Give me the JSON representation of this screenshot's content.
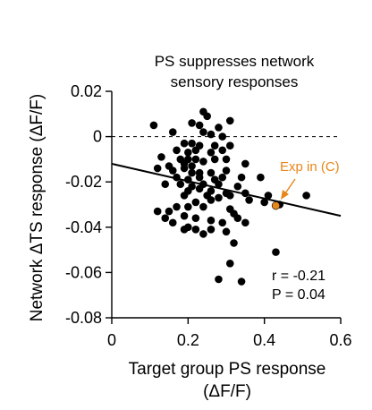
{
  "chart_data": {
    "type": "scatter",
    "title_lines": [
      "PS suppresses network",
      "sensory responses"
    ],
    "xlabel_lines": [
      "Target group PS response",
      "(ΔF/F)"
    ],
    "ylabel": "Network ΔTS response  (ΔF/F)",
    "xlim": [
      0,
      0.6
    ],
    "ylim": [
      -0.08,
      0.02
    ],
    "x_ticks": [
      0,
      0.2,
      0.4,
      0.6
    ],
    "x_tick_labels": [
      "0",
      "0.2",
      "0.4",
      "0.6"
    ],
    "y_ticks": [
      0.02,
      0,
      -0.02,
      -0.04,
      -0.06,
      -0.08
    ],
    "y_tick_labels": [
      "0.02",
      "0",
      "-0.02",
      "-0.04",
      "-0.06",
      "-0.08"
    ],
    "zero_line": {
      "y": 0,
      "style": "dashed"
    },
    "grid": false,
    "points": [
      {
        "x": 0.24,
        "y": 0.011
      },
      {
        "x": 0.25,
        "y": 0.009
      },
      {
        "x": 0.31,
        "y": 0.007
      },
      {
        "x": 0.11,
        "y": 0.005
      },
      {
        "x": 0.21,
        "y": 0.006
      },
      {
        "x": 0.23,
        "y": 0.005
      },
      {
        "x": 0.28,
        "y": 0.004
      },
      {
        "x": 0.16,
        "y": 0.002
      },
      {
        "x": 0.24,
        "y": 0.002
      },
      {
        "x": 0.26,
        "y": 0.001
      },
      {
        "x": 0.29,
        "y": 0.0
      },
      {
        "x": 0.19,
        "y": -0.003
      },
      {
        "x": 0.21,
        "y": -0.003
      },
      {
        "x": 0.23,
        "y": -0.004
      },
      {
        "x": 0.27,
        "y": -0.004
      },
      {
        "x": 0.31,
        "y": -0.004
      },
      {
        "x": 0.17,
        "y": -0.006
      },
      {
        "x": 0.2,
        "y": -0.007
      },
      {
        "x": 0.22,
        "y": -0.006
      },
      {
        "x": 0.26,
        "y": -0.007
      },
      {
        "x": 0.29,
        "y": -0.006
      },
      {
        "x": 0.13,
        "y": -0.009
      },
      {
        "x": 0.18,
        "y": -0.01
      },
      {
        "x": 0.2,
        "y": -0.01
      },
      {
        "x": 0.22,
        "y": -0.01
      },
      {
        "x": 0.24,
        "y": -0.011
      },
      {
        "x": 0.27,
        "y": -0.01
      },
      {
        "x": 0.3,
        "y": -0.01
      },
      {
        "x": 0.35,
        "y": -0.012
      },
      {
        "x": 0.19,
        "y": -0.012
      },
      {
        "x": 0.15,
        "y": -0.013
      },
      {
        "x": 0.21,
        "y": -0.013
      },
      {
        "x": 0.12,
        "y": -0.014
      },
      {
        "x": 0.16,
        "y": -0.015
      },
      {
        "x": 0.19,
        "y": -0.014
      },
      {
        "x": 0.21,
        "y": -0.016
      },
      {
        "x": 0.23,
        "y": -0.016
      },
      {
        "x": 0.26,
        "y": -0.016
      },
      {
        "x": 0.3,
        "y": -0.015
      },
      {
        "x": 0.17,
        "y": -0.018
      },
      {
        "x": 0.2,
        "y": -0.019
      },
      {
        "x": 0.23,
        "y": -0.018
      },
      {
        "x": 0.27,
        "y": -0.019
      },
      {
        "x": 0.29,
        "y": -0.018
      },
      {
        "x": 0.34,
        "y": -0.018
      },
      {
        "x": 0.39,
        "y": -0.018
      },
      {
        "x": 0.14,
        "y": -0.021
      },
      {
        "x": 0.18,
        "y": -0.021
      },
      {
        "x": 0.21,
        "y": -0.022
      },
      {
        "x": 0.24,
        "y": -0.021
      },
      {
        "x": 0.28,
        "y": -0.021
      },
      {
        "x": 0.33,
        "y": -0.022
      },
      {
        "x": 0.2,
        "y": -0.024
      },
      {
        "x": 0.23,
        "y": -0.023
      },
      {
        "x": 0.26,
        "y": -0.024
      },
      {
        "x": 0.3,
        "y": -0.025
      },
      {
        "x": 0.35,
        "y": -0.025
      },
      {
        "x": 0.19,
        "y": -0.026
      },
      {
        "x": 0.25,
        "y": -0.026
      },
      {
        "x": 0.28,
        "y": -0.027
      },
      {
        "x": 0.31,
        "y": -0.026
      },
      {
        "x": 0.41,
        "y": -0.026
      },
      {
        "x": 0.51,
        "y": -0.026
      },
      {
        "x": 0.22,
        "y": -0.029
      },
      {
        "x": 0.26,
        "y": -0.028
      },
      {
        "x": 0.36,
        "y": -0.028
      },
      {
        "x": 0.4,
        "y": -0.029
      },
      {
        "x": 0.44,
        "y": -0.03
      },
      {
        "x": 0.17,
        "y": -0.031
      },
      {
        "x": 0.2,
        "y": -0.031
      },
      {
        "x": 0.24,
        "y": -0.031
      },
      {
        "x": 0.31,
        "y": -0.032
      },
      {
        "x": 0.12,
        "y": -0.033
      },
      {
        "x": 0.15,
        "y": -0.033
      },
      {
        "x": 0.32,
        "y": -0.034
      },
      {
        "x": 0.19,
        "y": -0.035
      },
      {
        "x": 0.14,
        "y": -0.036
      },
      {
        "x": 0.22,
        "y": -0.036
      },
      {
        "x": 0.33,
        "y": -0.036
      },
      {
        "x": 0.26,
        "y": -0.037
      },
      {
        "x": 0.29,
        "y": -0.038
      },
      {
        "x": 0.16,
        "y": -0.038
      },
      {
        "x": 0.2,
        "y": -0.04
      },
      {
        "x": 0.35,
        "y": -0.038
      },
      {
        "x": 0.19,
        "y": -0.041
      },
      {
        "x": 0.22,
        "y": -0.041
      },
      {
        "x": 0.26,
        "y": -0.041
      },
      {
        "x": 0.3,
        "y": -0.042
      },
      {
        "x": 0.24,
        "y": -0.043
      },
      {
        "x": 0.32,
        "y": -0.047
      },
      {
        "x": 0.43,
        "y": -0.051
      },
      {
        "x": 0.31,
        "y": -0.056
      },
      {
        "x": 0.28,
        "y": -0.063
      },
      {
        "x": 0.34,
        "y": -0.064
      }
    ],
    "highlight_point": {
      "x": 0.43,
      "y": -0.0305,
      "color": "#e8861a"
    },
    "annotation": {
      "text": "Exp in (C)",
      "color": "#e8861a"
    },
    "fit_line": {
      "x0": 0,
      "y0": -0.012,
      "x1": 0.6,
      "y1": -0.035
    },
    "stats": {
      "r": "r = -0.21",
      "p": "P = 0.04"
    },
    "point_color": "#000000"
  }
}
